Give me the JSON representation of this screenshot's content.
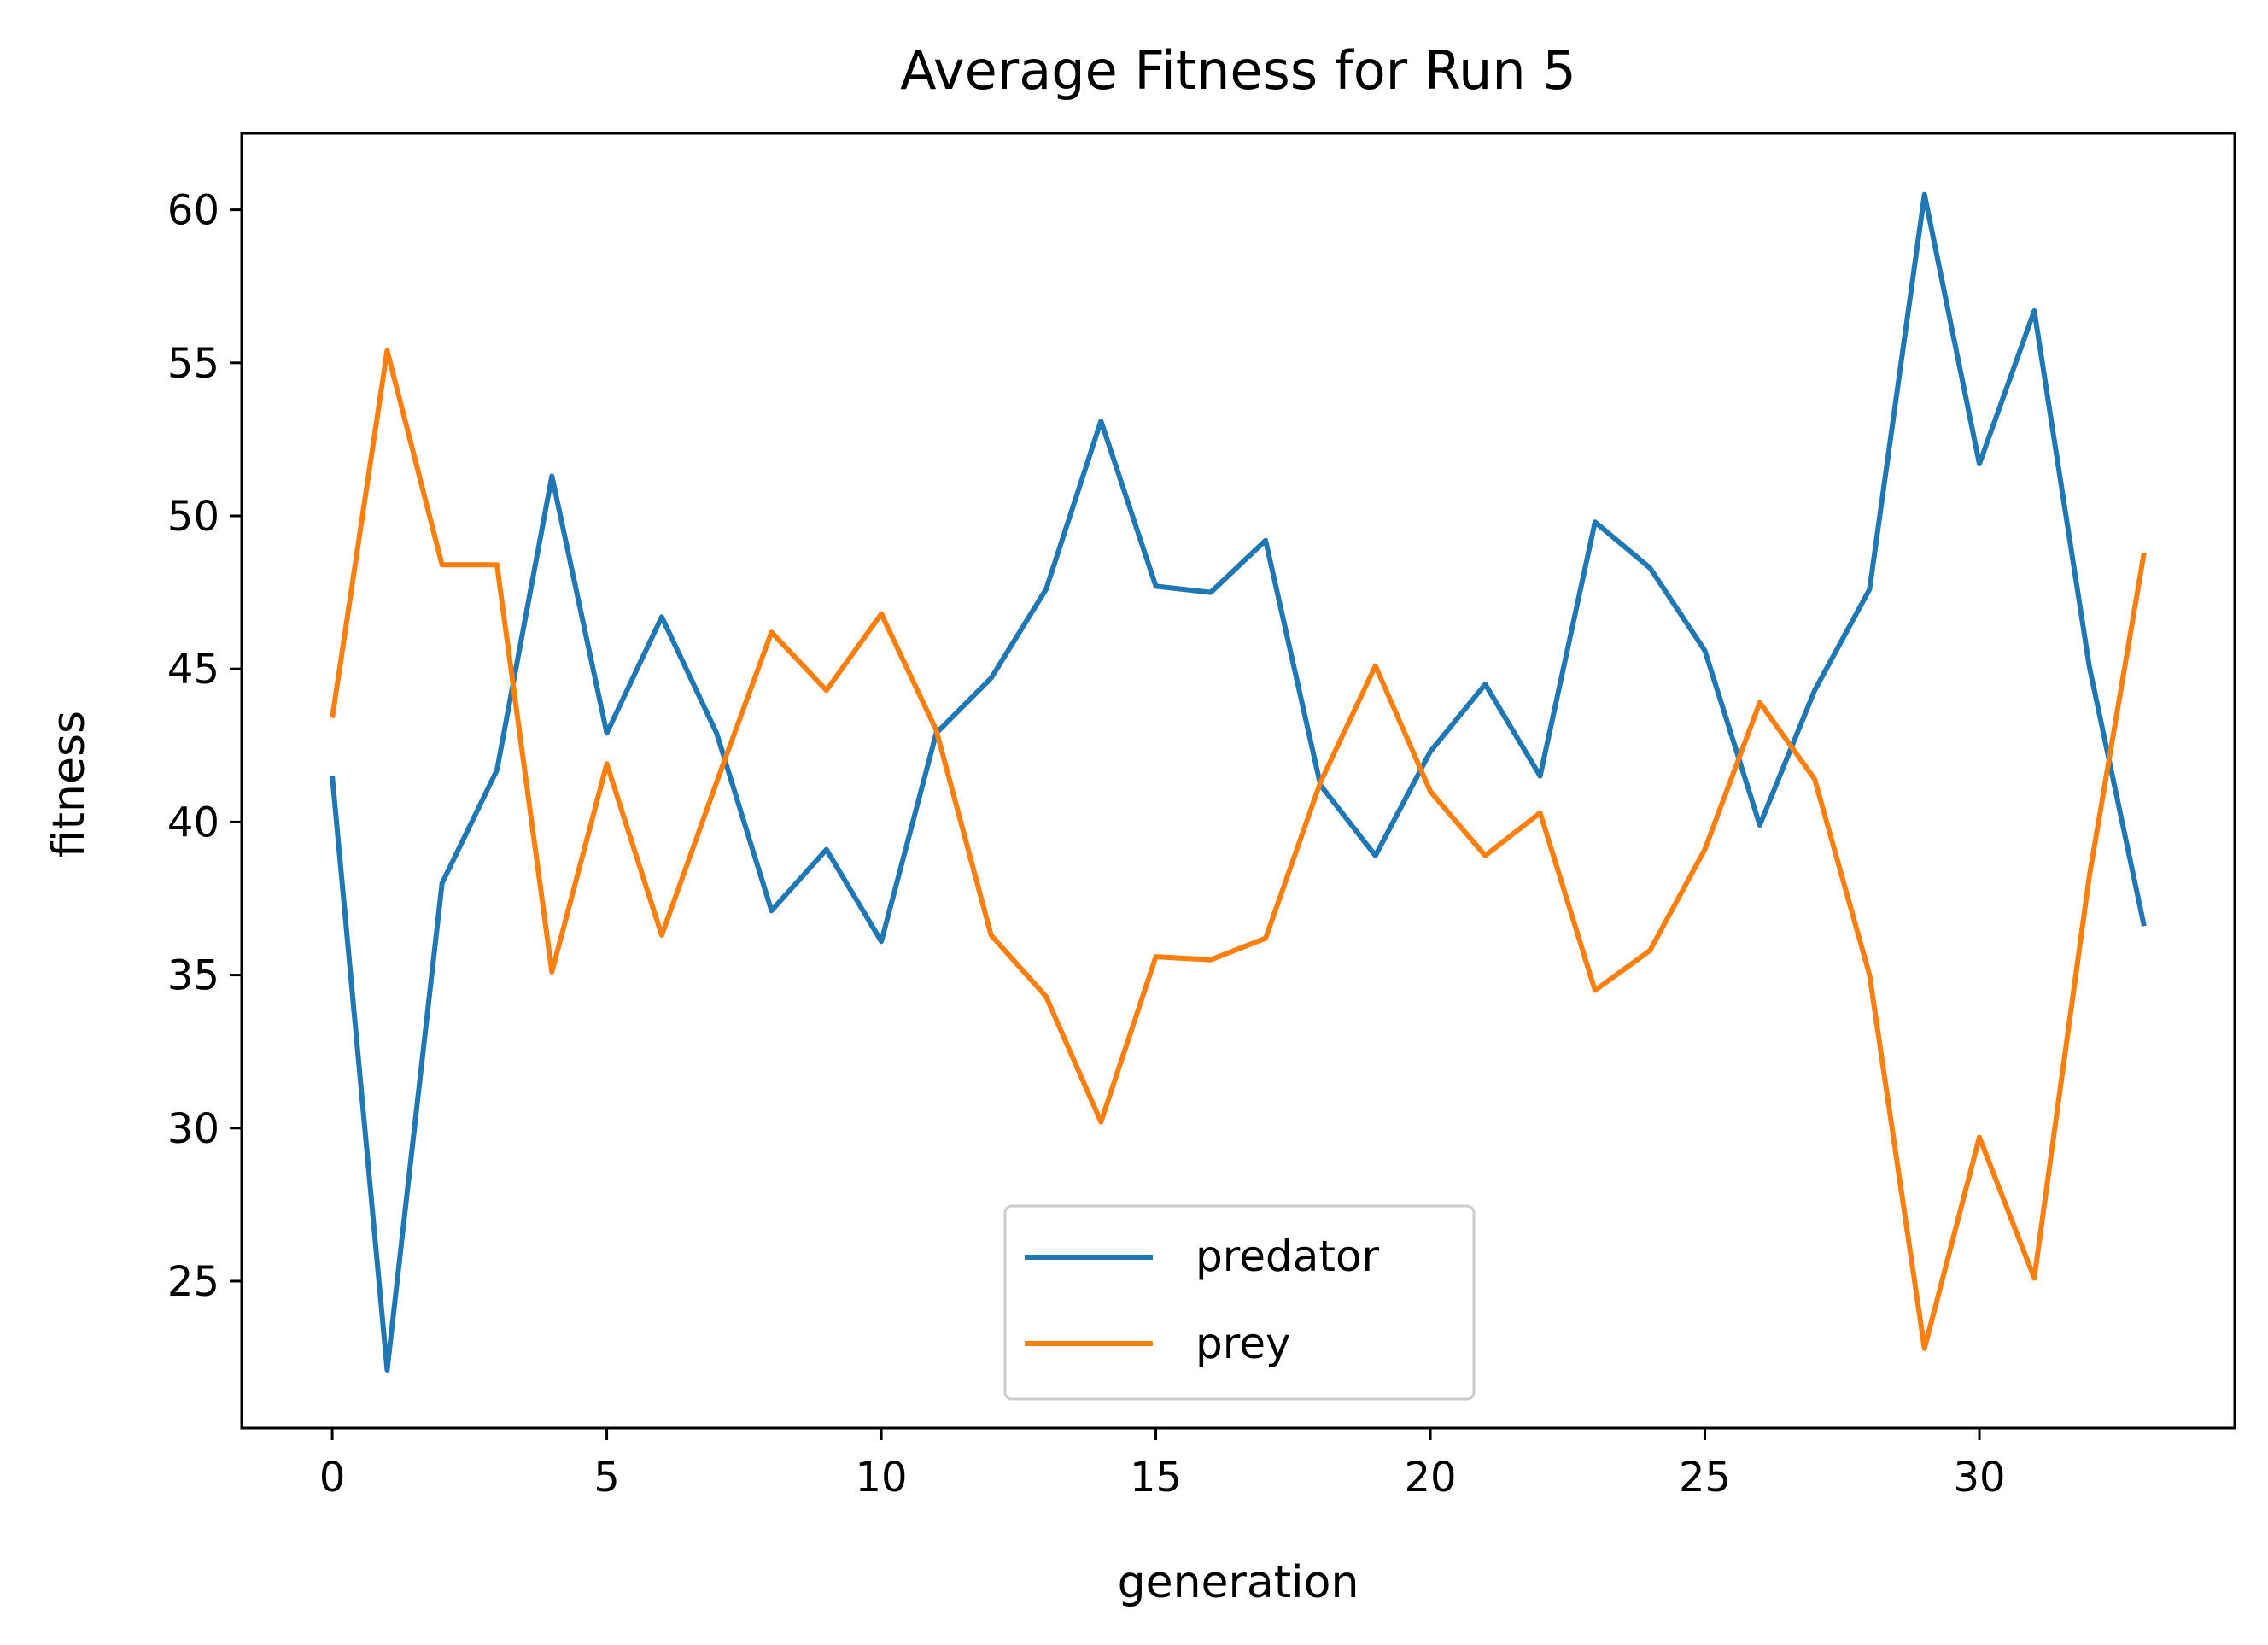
{
  "chart_data": {
    "type": "line",
    "title": "Average Fitness for Run 5",
    "xlabel": "generation",
    "ylabel": "fitness",
    "xlim": [
      -1.65,
      34.65
    ],
    "ylim": [
      20.2,
      62.5
    ],
    "xticks": [
      0,
      5,
      10,
      15,
      20,
      25,
      30
    ],
    "yticks": [
      25,
      30,
      35,
      40,
      45,
      50,
      55,
      60
    ],
    "grid": false,
    "legend_position": "lower center",
    "x": [
      0,
      1,
      2,
      3,
      4,
      5,
      6,
      7,
      8,
      9,
      10,
      11,
      12,
      13,
      14,
      15,
      16,
      17,
      18,
      19,
      20,
      21,
      22,
      23,
      24,
      25,
      26,
      27,
      28,
      29,
      30,
      31,
      32,
      33
    ],
    "series": [
      {
        "name": "predator",
        "color": "#1f77b4",
        "values": [
          41.5,
          22.1,
          38.0,
          41.7,
          51.3,
          42.9,
          46.7,
          42.9,
          37.1,
          39.1,
          36.1,
          42.9,
          44.7,
          47.6,
          53.1,
          47.7,
          47.5,
          49.2,
          41.2,
          38.9,
          42.3,
          44.5,
          41.5,
          49.8,
          48.3,
          45.6,
          39.9,
          44.3,
          47.6,
          60.5,
          51.7,
          56.7,
          45.1,
          36.6
        ]
      },
      {
        "name": "prey",
        "color": "#ff7f0e",
        "values": [
          43.4,
          55.4,
          48.4,
          48.4,
          35.1,
          41.9,
          36.3,
          41.3,
          46.2,
          44.3,
          46.8,
          43.0,
          36.3,
          34.3,
          30.2,
          35.6,
          35.5,
          36.2,
          41.3,
          45.1,
          41.0,
          38.9,
          40.3,
          34.5,
          35.8,
          39.1,
          43.9,
          41.4,
          35.0,
          22.8,
          29.7,
          25.1,
          38.2,
          48.8
        ]
      }
    ]
  }
}
